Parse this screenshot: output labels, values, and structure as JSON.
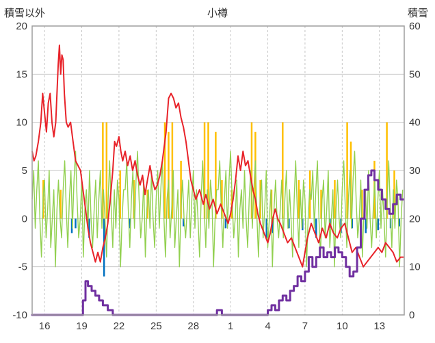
{
  "header": {
    "left_axis_title": "積雪以外",
    "title": "小樽",
    "right_axis_title": "積雪"
  },
  "chart_data": {
    "type": "line",
    "title": "小樽",
    "left_axis": {
      "label": "積雪以外",
      "min": -10,
      "max": 20,
      "ticks": [
        20,
        15,
        10,
        5,
        0,
        -5,
        -10
      ]
    },
    "right_axis": {
      "label": "積雪",
      "min": 0,
      "max": 60,
      "ticks": [
        60,
        50,
        40,
        30,
        20,
        10,
        0
      ]
    },
    "x_axis": {
      "min": 0,
      "max": 30,
      "tick_positions": [
        1,
        4,
        7,
        10,
        13,
        16,
        19,
        22,
        25,
        28
      ],
      "tick_labels": [
        "16",
        "19",
        "22",
        "25",
        "28",
        "1",
        "4",
        "7",
        "10",
        "13"
      ]
    },
    "grid": {
      "h_color": "#c6c6c6",
      "v_color": "#c6c6c6",
      "border_color": "#9e9e9e",
      "label_color": "#3a3a3a"
    },
    "series": [
      {
        "name": "sunshine-bars",
        "type": "bar",
        "axis": "left",
        "color": "#FFC000",
        "width": 2.5,
        "points": [
          [
            0.9,
            4
          ],
          [
            2.3,
            3
          ],
          [
            5.7,
            10
          ],
          [
            6.0,
            10
          ],
          [
            7.1,
            5
          ],
          [
            8.2,
            4
          ],
          [
            9.3,
            3
          ],
          [
            10.7,
            10
          ],
          [
            11.0,
            9
          ],
          [
            11.3,
            10
          ],
          [
            12.0,
            6
          ],
          [
            13.9,
            10
          ],
          [
            14.2,
            10
          ],
          [
            14.8,
            9
          ],
          [
            15.3,
            4
          ],
          [
            16.1,
            3
          ],
          [
            17.7,
            10
          ],
          [
            18.0,
            9
          ],
          [
            18.4,
            4
          ],
          [
            19.3,
            3
          ],
          [
            20.2,
            10
          ],
          [
            21.5,
            4
          ],
          [
            22.4,
            5
          ],
          [
            23.3,
            3
          ],
          [
            24.4,
            4
          ],
          [
            25.4,
            10
          ],
          [
            25.7,
            8
          ],
          [
            26.6,
            3
          ],
          [
            27.6,
            6
          ],
          [
            28.6,
            10
          ],
          [
            29.2,
            5
          ]
        ]
      },
      {
        "name": "precip-bars",
        "type": "bar",
        "axis": "left",
        "color": "#0070C0",
        "width": 2.5,
        "points": [
          [
            3.2,
            -1.5
          ],
          [
            3.5,
            -1
          ],
          [
            4.6,
            -2
          ],
          [
            5.8,
            -6
          ],
          [
            7.9,
            -1
          ],
          [
            12.2,
            -0.8
          ],
          [
            15.6,
            -1
          ],
          [
            18.9,
            -2
          ],
          [
            19.4,
            -1.5
          ],
          [
            20.7,
            -1
          ],
          [
            21.8,
            -1.2
          ],
          [
            22.9,
            -2
          ],
          [
            24.0,
            -1
          ],
          [
            24.9,
            -1.5
          ],
          [
            25.8,
            -1
          ],
          [
            26.9,
            -1.5
          ],
          [
            27.9,
            -1.2
          ],
          [
            28.9,
            -1
          ],
          [
            29.6,
            -0.8
          ]
        ]
      },
      {
        "name": "wind-line",
        "type": "sampled-line",
        "axis": "left",
        "color": "#92D050",
        "width": 1.4,
        "x_start": 0,
        "x_step": 0.125,
        "values": [
          2,
          5,
          -1,
          3,
          6,
          0,
          -4,
          2,
          4,
          -2,
          1,
          5,
          -3,
          0,
          3,
          -5,
          1,
          4,
          0,
          -2,
          3,
          6,
          1,
          -3,
          2,
          5,
          -1,
          4,
          7,
          2,
          -2,
          0,
          4,
          -4,
          1,
          3,
          -1,
          5,
          0,
          -3,
          1,
          4,
          -2,
          2,
          5,
          -1,
          3,
          0,
          -4,
          2,
          6,
          1,
          -3,
          3,
          -1,
          4,
          2,
          -5,
          0,
          3,
          3,
          6,
          1,
          -3,
          2,
          5,
          -1,
          4,
          7,
          2,
          -2,
          0,
          4,
          -4,
          1,
          3,
          -1,
          5,
          0,
          -3,
          2,
          5,
          -1,
          3,
          6,
          0,
          -4,
          2,
          4,
          -2,
          1,
          5,
          -3,
          0,
          3,
          -5,
          1,
          4,
          0,
          -2,
          1,
          4,
          -2,
          2,
          5,
          -1,
          3,
          0,
          -4,
          2,
          6,
          1,
          -3,
          3,
          -1,
          4,
          2,
          -5,
          0,
          3,
          3,
          6,
          1,
          -3,
          2,
          5,
          -1,
          4,
          7,
          2,
          -2,
          0,
          4,
          -4,
          1,
          3,
          -1,
          5,
          0,
          -3,
          2,
          5,
          -1,
          3,
          6,
          0,
          -4,
          2,
          4,
          -2,
          1,
          5,
          -3,
          0,
          3,
          -5,
          1,
          4,
          0,
          -2,
          1,
          4,
          -2,
          2,
          5,
          -1,
          3,
          0,
          -4,
          2,
          6,
          1,
          -3,
          3,
          -1,
          4,
          2,
          -5,
          0,
          3,
          2,
          5,
          -1,
          3,
          6,
          0,
          -4,
          2,
          4,
          -2,
          1,
          5,
          -3,
          0,
          3,
          -5,
          1,
          4,
          0,
          -2,
          3,
          6,
          1,
          -3,
          2,
          5,
          -1,
          4,
          7,
          2,
          -2,
          0,
          4,
          -4,
          1,
          3,
          -1,
          5,
          0,
          -3,
          1,
          4,
          -2,
          2,
          5,
          -1,
          3,
          0,
          -4,
          2,
          6,
          1,
          -3,
          3,
          -1,
          4,
          2,
          -5,
          0,
          3
        ]
      },
      {
        "name": "temperature-line",
        "type": "line",
        "axis": "left",
        "color": "#E8232A",
        "width": 2,
        "points": [
          [
            0,
            7
          ],
          [
            0.15,
            6
          ],
          [
            0.3,
            6.5
          ],
          [
            0.5,
            8
          ],
          [
            0.7,
            10
          ],
          [
            0.85,
            13
          ],
          [
            1.0,
            11
          ],
          [
            1.15,
            9
          ],
          [
            1.3,
            12
          ],
          [
            1.45,
            13
          ],
          [
            1.6,
            10
          ],
          [
            1.75,
            8.5
          ],
          [
            1.9,
            10
          ],
          [
            2.0,
            13
          ],
          [
            2.1,
            16
          ],
          [
            2.2,
            18
          ],
          [
            2.3,
            15
          ],
          [
            2.4,
            17
          ],
          [
            2.5,
            16.5
          ],
          [
            2.6,
            13
          ],
          [
            2.75,
            10
          ],
          [
            2.9,
            9.5
          ],
          [
            3.1,
            10
          ],
          [
            3.3,
            8
          ],
          [
            3.5,
            6
          ],
          [
            3.7,
            5.5
          ],
          [
            3.9,
            5
          ],
          [
            4.1,
            3
          ],
          [
            4.3,
            1
          ],
          [
            4.5,
            -1
          ],
          [
            4.7,
            -2.5
          ],
          [
            4.9,
            -3.5
          ],
          [
            5.1,
            -4.5
          ],
          [
            5.3,
            -3.5
          ],
          [
            5.5,
            -4.5
          ],
          [
            5.7,
            -3
          ],
          [
            5.9,
            -2
          ],
          [
            6.1,
            -0.5
          ],
          [
            6.3,
            2
          ],
          [
            6.5,
            5
          ],
          [
            6.65,
            8
          ],
          [
            6.8,
            7.5
          ],
          [
            7.0,
            8.5
          ],
          [
            7.15,
            7
          ],
          [
            7.3,
            6
          ],
          [
            7.5,
            7
          ],
          [
            7.7,
            5.5
          ],
          [
            7.9,
            6.5
          ],
          [
            8.1,
            5
          ],
          [
            8.3,
            6
          ],
          [
            8.5,
            4.5
          ],
          [
            8.7,
            3.5
          ],
          [
            8.9,
            4.5
          ],
          [
            9.1,
            2.5
          ],
          [
            9.3,
            4
          ],
          [
            9.5,
            5.5
          ],
          [
            9.7,
            4
          ],
          [
            9.9,
            3
          ],
          [
            10.1,
            3.5
          ],
          [
            10.3,
            4.5
          ],
          [
            10.5,
            6
          ],
          [
            10.8,
            9
          ],
          [
            11.0,
            12.5
          ],
          [
            11.2,
            13
          ],
          [
            11.4,
            12.5
          ],
          [
            11.6,
            11.5
          ],
          [
            11.8,
            12
          ],
          [
            12.0,
            10.5
          ],
          [
            12.2,
            9.5
          ],
          [
            12.4,
            8
          ],
          [
            12.6,
            6
          ],
          [
            12.8,
            4
          ],
          [
            13.0,
            3
          ],
          [
            13.2,
            2
          ],
          [
            13.5,
            3
          ],
          [
            13.8,
            1.5
          ],
          [
            14.0,
            2.5
          ],
          [
            14.3,
            1
          ],
          [
            14.6,
            2
          ],
          [
            14.9,
            0.5
          ],
          [
            15.2,
            1.5
          ],
          [
            15.5,
            0.5
          ],
          [
            15.8,
            -0.5
          ],
          [
            16.0,
            0.5
          ],
          [
            16.2,
            2
          ],
          [
            16.4,
            4
          ],
          [
            16.6,
            6.5
          ],
          [
            16.8,
            5
          ],
          [
            17.0,
            7
          ],
          [
            17.2,
            5.5
          ],
          [
            17.4,
            6
          ],
          [
            17.6,
            4.5
          ],
          [
            17.8,
            3
          ],
          [
            18.0,
            2
          ],
          [
            18.2,
            0.5
          ],
          [
            18.4,
            -0.5
          ],
          [
            18.7,
            -1.5
          ],
          [
            19.0,
            -2.5
          ],
          [
            19.2,
            -1.5
          ],
          [
            19.4,
            0
          ],
          [
            19.6,
            1
          ],
          [
            19.8,
            0
          ],
          [
            20.0,
            -0.5
          ],
          [
            20.3,
            -1.5
          ],
          [
            20.6,
            -2.5
          ],
          [
            20.9,
            -2
          ],
          [
            21.2,
            -3
          ],
          [
            21.5,
            -4
          ],
          [
            21.8,
            -5
          ],
          [
            22.0,
            -3.5
          ],
          [
            22.2,
            -2
          ],
          [
            22.5,
            -0.5
          ],
          [
            22.8,
            -1.5
          ],
          [
            23.1,
            -2.5
          ],
          [
            23.4,
            -1
          ],
          [
            23.7,
            -2
          ],
          [
            24.0,
            -0.5
          ],
          [
            24.3,
            -1.5
          ],
          [
            24.6,
            -2
          ],
          [
            24.9,
            -1
          ],
          [
            25.2,
            -0.5
          ],
          [
            25.5,
            -2
          ],
          [
            25.8,
            -3.5
          ],
          [
            26.1,
            -3
          ],
          [
            26.4,
            -4
          ],
          [
            26.7,
            -5
          ],
          [
            27.0,
            -4.5
          ],
          [
            27.3,
            -4
          ],
          [
            27.6,
            -3.5
          ],
          [
            27.9,
            -3
          ],
          [
            28.2,
            -3.5
          ],
          [
            28.5,
            -2.5
          ],
          [
            28.8,
            -3
          ],
          [
            29.1,
            -3.5
          ],
          [
            29.4,
            -4.5
          ],
          [
            29.7,
            -4
          ],
          [
            29.95,
            -4
          ]
        ]
      },
      {
        "name": "snow-depth-step",
        "type": "step",
        "axis": "right",
        "color": "#7030A0",
        "width": 3,
        "points": [
          [
            0,
            0
          ],
          [
            3.9,
            0
          ],
          [
            4.1,
            3
          ],
          [
            4.3,
            7
          ],
          [
            4.5,
            6
          ],
          [
            4.8,
            5
          ],
          [
            5.1,
            4
          ],
          [
            5.4,
            3
          ],
          [
            5.7,
            2
          ],
          [
            6.1,
            1
          ],
          [
            6.5,
            0
          ],
          [
            14.7,
            0
          ],
          [
            14.9,
            1
          ],
          [
            15.1,
            1
          ],
          [
            15.3,
            0
          ],
          [
            18.8,
            0
          ],
          [
            19.0,
            1
          ],
          [
            19.3,
            2
          ],
          [
            19.6,
            1
          ],
          [
            19.9,
            3
          ],
          [
            20.2,
            4
          ],
          [
            20.5,
            3
          ],
          [
            20.8,
            5
          ],
          [
            21.1,
            6
          ],
          [
            21.4,
            8
          ],
          [
            21.7,
            7
          ],
          [
            22.0,
            9
          ],
          [
            22.3,
            12
          ],
          [
            22.6,
            10
          ],
          [
            22.9,
            12
          ],
          [
            23.2,
            14
          ],
          [
            23.5,
            12
          ],
          [
            23.8,
            13
          ],
          [
            24.1,
            12
          ],
          [
            24.4,
            14
          ],
          [
            24.7,
            13
          ],
          [
            25.0,
            12
          ],
          [
            25.3,
            10
          ],
          [
            25.6,
            8
          ],
          [
            25.9,
            9
          ],
          [
            26.2,
            14
          ],
          [
            26.5,
            20
          ],
          [
            26.8,
            26
          ],
          [
            27.1,
            29
          ],
          [
            27.35,
            30
          ],
          [
            27.6,
            28
          ],
          [
            27.9,
            26
          ],
          [
            28.2,
            24
          ],
          [
            28.5,
            22
          ],
          [
            28.8,
            21
          ],
          [
            29.1,
            23
          ],
          [
            29.4,
            25
          ],
          [
            29.7,
            24
          ],
          [
            29.95,
            24
          ]
        ]
      }
    ]
  }
}
